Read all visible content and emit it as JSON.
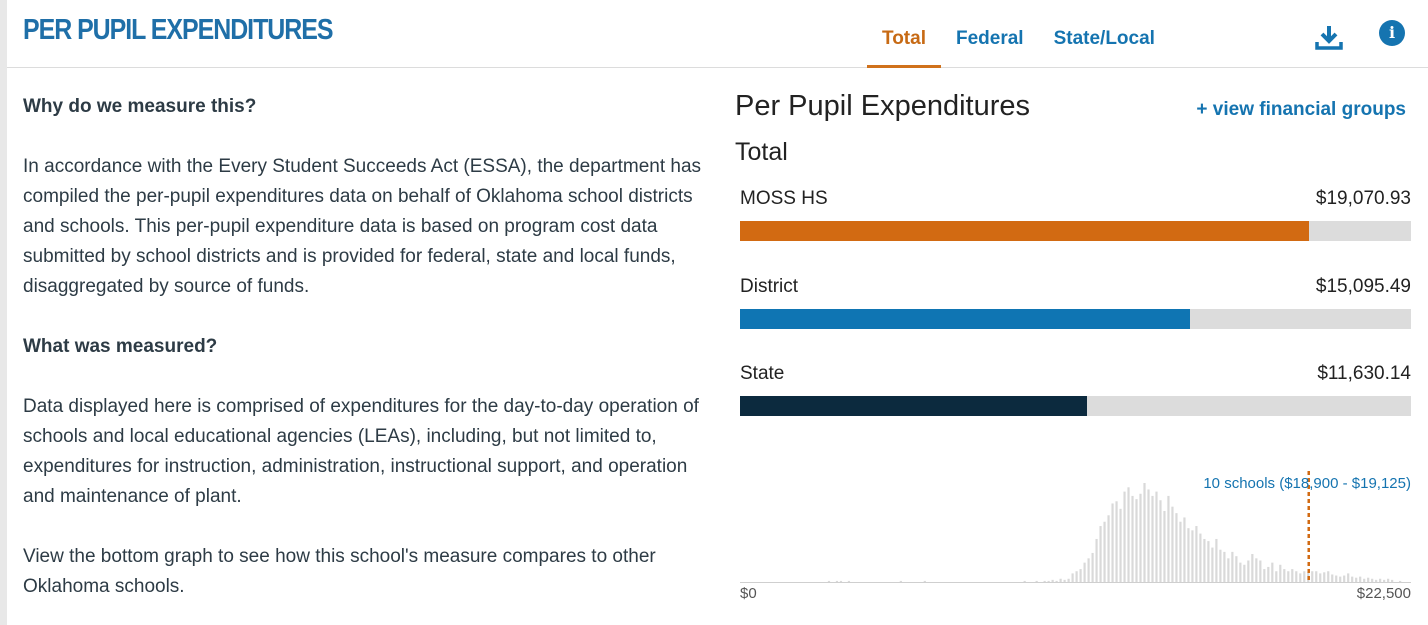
{
  "header": {
    "title": "PER PUPIL EXPENDITURES",
    "tabs": [
      {
        "label": "Total",
        "active": true
      },
      {
        "label": "Federal",
        "active": false
      },
      {
        "label": "State/Local",
        "active": false
      }
    ],
    "download_icon": "download-icon",
    "info_icon": "info-icon",
    "info_glyph": "i"
  },
  "info": {
    "why_heading": "Why do we measure this?",
    "why_text": "In accordance with the Every Student Succeeds Act (ESSA), the department has compiled the per-pupil expenditures data on behalf of Oklahoma school districts and schools. This per-pupil expenditure data is based on program cost data submitted by school districts and is provided for federal, state and local funds, disaggregated by source of funds.",
    "what_heading": "What was measured?",
    "what_text": "Data displayed here is comprised of expenditures for the day-to-day operation of schools and local educational agencies (LEAs), including, but not limited to, expenditures for instruction, administration, instructional support, and operation and maintenance of plant.",
    "view_text": "View the bottom graph to see how this school's measure compares to other Oklahoma schools."
  },
  "chart": {
    "title": "Per Pupil Expenditures",
    "view_groups_link": "+ view financial groups",
    "subtitle": "Total",
    "scale_max": 22500,
    "bars": [
      {
        "label": "MOSS HS",
        "value_text": "$19,070.93",
        "value": 19070.93,
        "color": "#d26a12"
      },
      {
        "label": "District",
        "value_text": "$15,095.49",
        "value": 15095.49,
        "color": "#0f75b3"
      },
      {
        "label": "State",
        "value_text": "$11,630.14",
        "value": 11630.14,
        "color": "#0c2a3e"
      }
    ]
  },
  "chart_data": {
    "type": "bar",
    "x_range": [
      0,
      22500
    ],
    "x_min_label": "$0",
    "x_max_label": "$22,500",
    "annotation": "10 schools ($18,900 - $19,125)",
    "marker_value": 19070.93,
    "bar_color": "#d9d9d9",
    "marker_color": "#d26a12",
    "annotation_color": "#1574b0",
    "bin_counts": [
      0,
      0,
      0,
      0,
      0,
      0,
      0,
      0,
      0,
      0,
      0,
      0,
      0,
      0,
      0,
      0,
      0,
      0,
      0,
      0,
      0,
      0,
      1,
      0,
      1,
      1,
      0,
      1,
      0,
      0,
      0,
      0,
      0,
      0,
      0,
      0,
      0,
      0,
      0,
      0,
      1,
      0,
      0,
      0,
      0,
      0,
      1,
      0,
      0,
      0,
      0,
      0,
      0,
      0,
      0,
      0,
      0,
      0,
      0,
      0,
      0,
      0,
      0,
      0,
      0,
      0,
      0,
      0,
      0,
      0,
      0,
      1,
      0,
      0,
      1,
      0,
      1,
      1,
      2,
      1,
      3,
      2,
      3,
      8,
      10,
      12,
      18,
      22,
      27,
      40,
      52,
      56,
      62,
      73,
      75,
      68,
      84,
      88,
      80,
      77,
      82,
      92,
      86,
      80,
      84,
      76,
      66,
      80,
      70,
      64,
      56,
      60,
      50,
      48,
      52,
      45,
      40,
      38,
      32,
      40,
      30,
      28,
      22,
      28,
      24,
      18,
      16,
      20,
      26,
      22,
      20,
      12,
      14,
      18,
      10,
      16,
      12,
      10,
      12,
      10,
      8,
      10,
      9,
      10,
      10,
      8,
      9,
      10,
      7,
      6,
      5,
      6,
      8,
      5,
      4,
      5,
      3,
      4,
      3,
      2,
      3,
      2,
      3,
      2,
      0,
      1,
      0,
      0
    ]
  }
}
